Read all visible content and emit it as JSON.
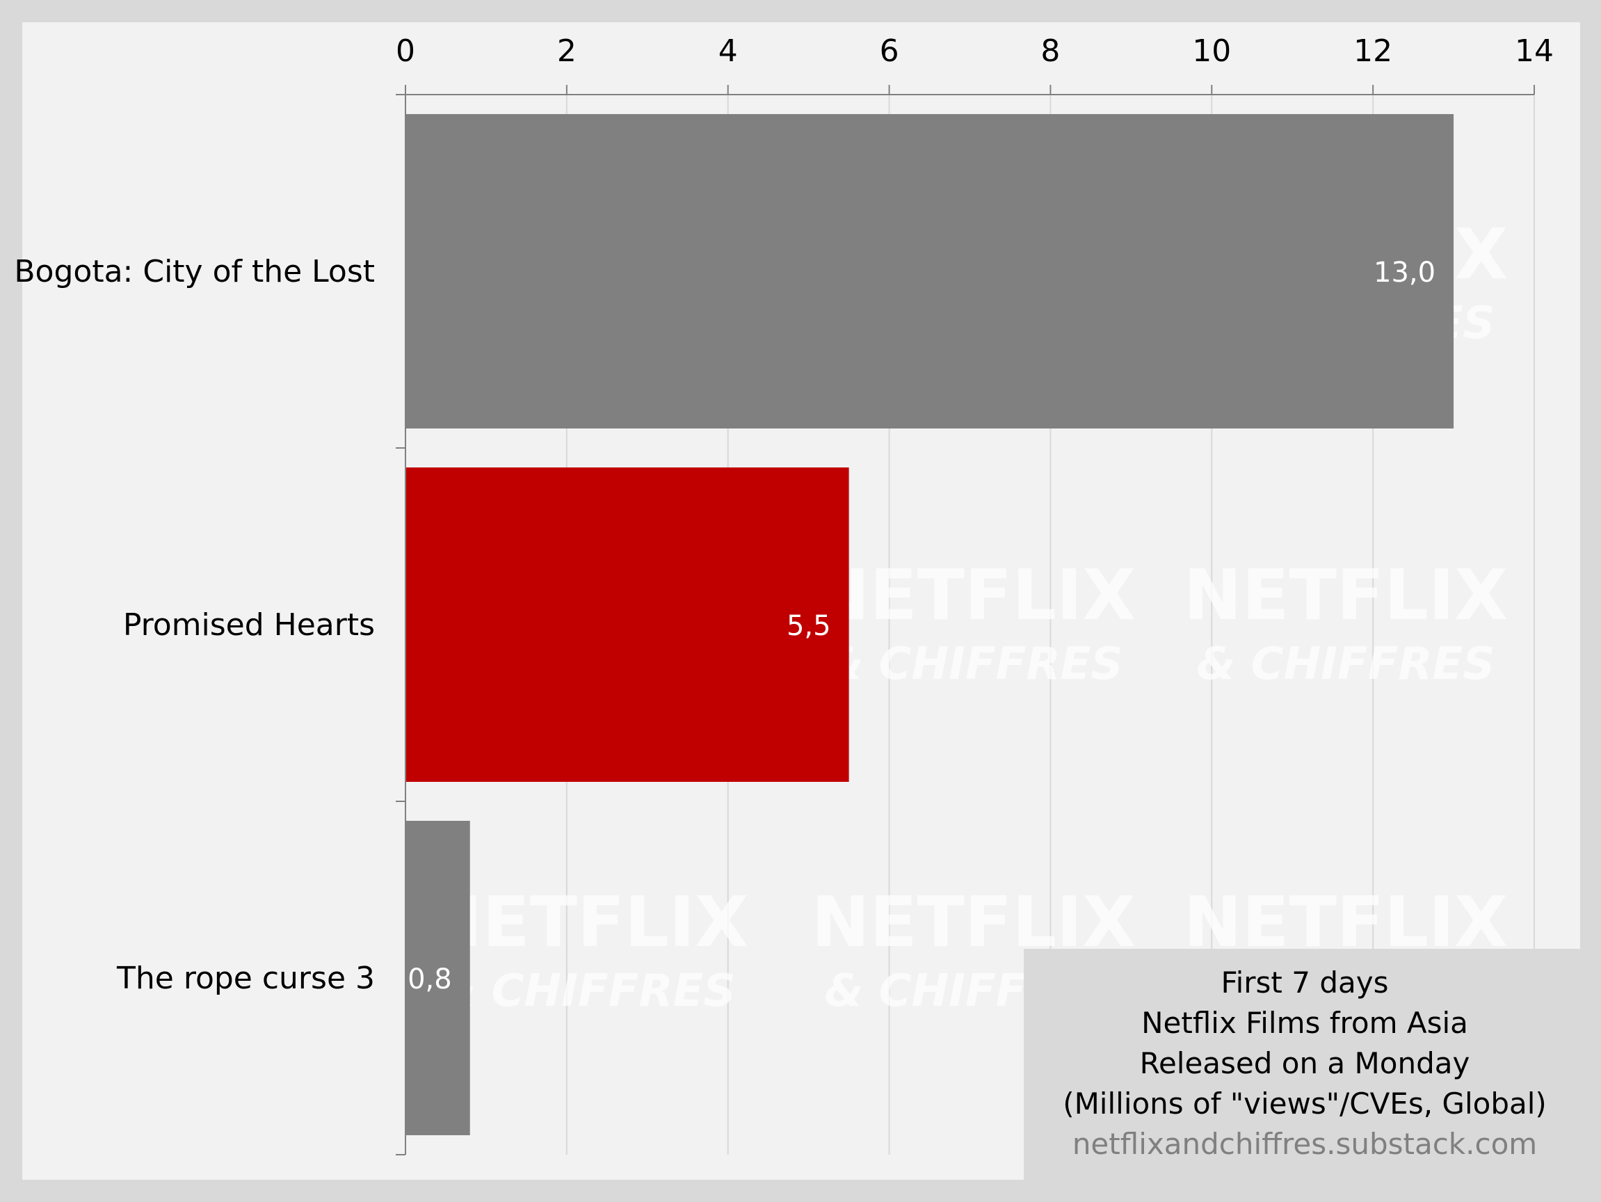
{
  "chart_data": {
    "type": "bar",
    "orientation": "horizontal",
    "categories": [
      "Bogota: City of the Lost",
      "Promised Hearts",
      "The rope curse 3"
    ],
    "values": [
      13.0,
      5.5,
      0.8
    ],
    "value_labels": [
      "13,0",
      "5,5",
      "0,8"
    ],
    "bar_colors": [
      "#808080",
      "#c00000",
      "#808080"
    ],
    "xlim": [
      0,
      14
    ],
    "xticks": [
      0,
      2,
      4,
      6,
      8,
      10,
      12,
      14
    ],
    "xtick_labels": [
      "0",
      "2",
      "4",
      "6",
      "8",
      "10",
      "12",
      "14"
    ],
    "x_axis_position": "top",
    "grid": "vertical",
    "legend": "none"
  },
  "info_box": {
    "line1": "First 7 days",
    "line2": "Netflix Films from Asia",
    "line3": "Released on a Monday",
    "line4": "(Millions of \"views\"/CVEs, Global)",
    "source": "netflixandchiffres.substack.com"
  },
  "watermark": {
    "title": "NETFLIX",
    "subtitle": "& CHIFFRES"
  },
  "colors": {
    "background_outer": "#d9d9d9",
    "plot_background": "#f2f2f2",
    "gridline": "#d9d9d9",
    "highlight_bar": "#c00000",
    "default_bar": "#808080"
  }
}
